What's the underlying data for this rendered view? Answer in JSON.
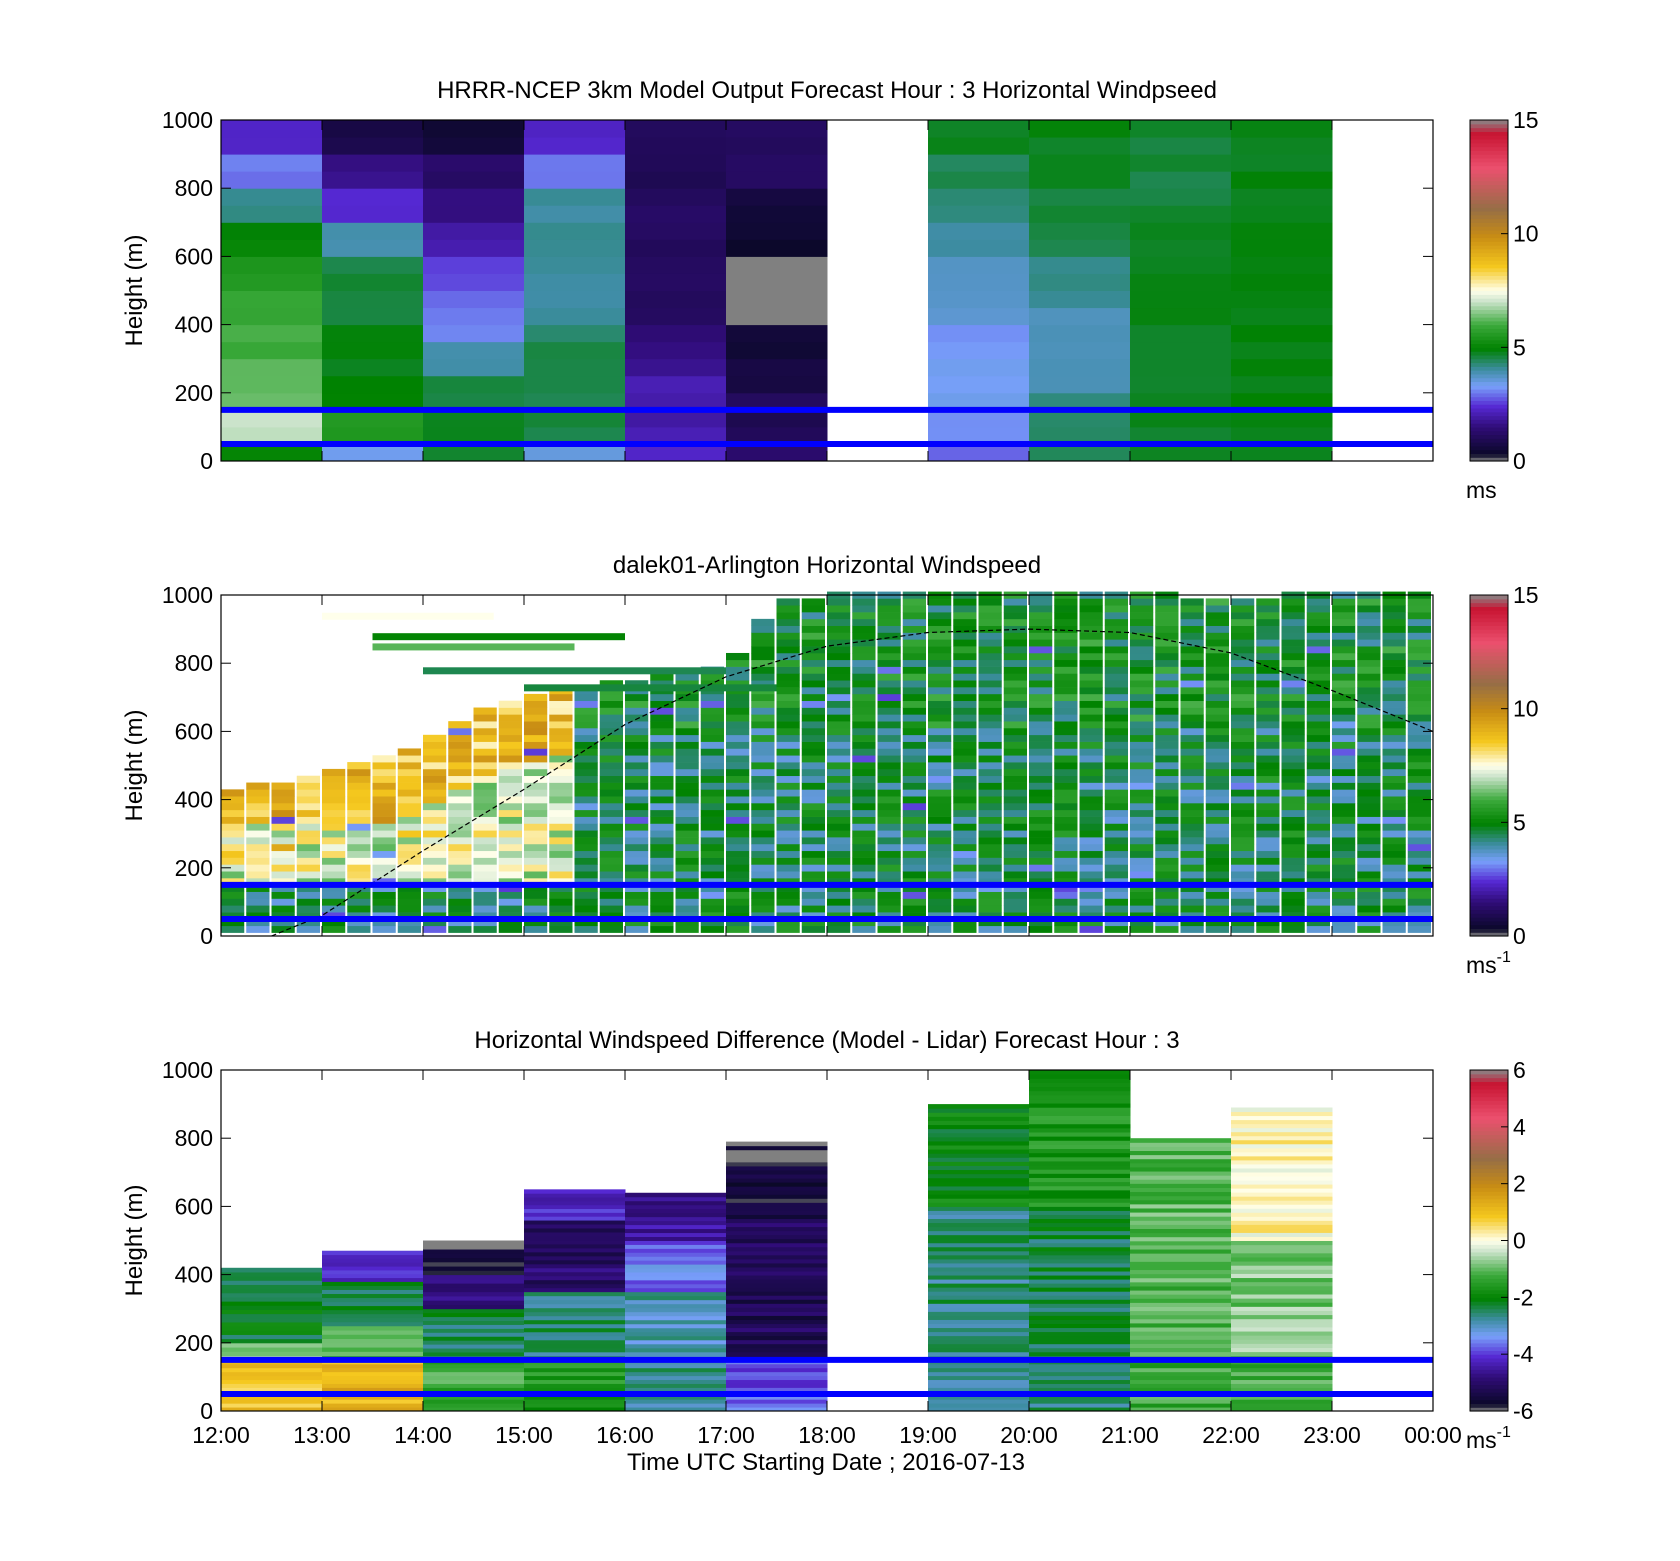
{
  "figure": {
    "xlabel": "Time UTC  Starting Date ; 2016-07-13",
    "xticks": [
      "12:00",
      "13:00",
      "14:00",
      "15:00",
      "16:00",
      "17:00",
      "18:00",
      "19:00",
      "20:00",
      "21:00",
      "22:00",
      "23:00",
      "00:00"
    ],
    "ylabel": "Height (m)",
    "yticks": [
      "0",
      "200",
      "400",
      "600",
      "800",
      "1000"
    ],
    "ref_lines_m": [
      50,
      150
    ],
    "ref_line_color": "#0000ff"
  },
  "chart_data": [
    {
      "type": "heatmap",
      "title": "HRRR-NCEP 3km Model Output   Forecast Hour : 3 Horizontal Windpseed",
      "xlabel": "",
      "ylabel": "Height (m)",
      "xlim": [
        12,
        24
      ],
      "ylim": [
        0,
        1000
      ],
      "colorbar": {
        "ticks": [
          "0",
          "5",
          "10",
          "15"
        ],
        "range": [
          0,
          15
        ],
        "unit": "ms",
        "unit_sup": ""
      },
      "columns": [
        {
          "t0": 12,
          "t1": 13,
          "levels": [
            [
              0,
              50,
              5.0
            ],
            [
              50,
              150,
              7.0
            ],
            [
              150,
              300,
              6.2
            ],
            [
              300,
              400,
              6.0
            ],
            [
              400,
              500,
              5.8
            ],
            [
              500,
              600,
              5.5
            ],
            [
              600,
              700,
              5.0
            ],
            [
              700,
              800,
              4.2
            ],
            [
              800,
              900,
              3.0
            ],
            [
              900,
              1000,
              2.2
            ]
          ]
        },
        {
          "t0": 13,
          "t1": 14,
          "levels": [
            [
              0,
              50,
              3.5
            ],
            [
              50,
              150,
              5.5
            ],
            [
              150,
              250,
              5.0
            ],
            [
              250,
              400,
              4.8
            ],
            [
              400,
              600,
              4.6
            ],
            [
              600,
              700,
              4.0
            ],
            [
              700,
              800,
              2.4
            ],
            [
              800,
              900,
              1.6
            ],
            [
              900,
              1000,
              0.8
            ]
          ]
        },
        {
          "t0": 14,
          "t1": 15,
          "levels": [
            [
              0,
              150,
              4.7
            ],
            [
              150,
              250,
              4.6
            ],
            [
              250,
              350,
              3.9
            ],
            [
              350,
              400,
              3.2
            ],
            [
              400,
              500,
              3.0
            ],
            [
              500,
              600,
              2.6
            ],
            [
              600,
              700,
              2.0
            ],
            [
              700,
              800,
              1.6
            ],
            [
              800,
              900,
              1.2
            ],
            [
              900,
              1000,
              0.6
            ]
          ]
        },
        {
          "t0": 15,
          "t1": 16,
          "levels": [
            [
              0,
              50,
              3.6
            ],
            [
              50,
              350,
              4.6
            ],
            [
              350,
              400,
              4.4
            ],
            [
              400,
              600,
              4.0
            ],
            [
              600,
              800,
              4.1
            ],
            [
              800,
              900,
              3.0
            ],
            [
              900,
              1000,
              2.3
            ]
          ]
        },
        {
          "t0": 16,
          "t1": 17,
          "levels": [
            [
              0,
              50,
              2.3
            ],
            [
              50,
              250,
              2.0
            ],
            [
              250,
              350,
              1.7
            ],
            [
              350,
              400,
              1.4
            ],
            [
              400,
              800,
              1.1
            ],
            [
              800,
              1000,
              1.0
            ]
          ]
        },
        {
          "t0": 17,
          "t1": 18,
          "levels": [
            [
              0,
              50,
              1.3
            ],
            [
              50,
              200,
              1.0
            ],
            [
              200,
              300,
              0.8
            ],
            [
              300,
              400,
              0.5
            ],
            [
              400,
              600,
              -1
            ],
            [
              600,
              700,
              0.4
            ],
            [
              700,
              800,
              0.6
            ],
            [
              800,
              1000,
              1.2
            ]
          ]
        },
        {
          "t0": 19,
          "t1": 20,
          "levels": [
            [
              0,
              50,
              2.8
            ],
            [
              50,
              150,
              3.1
            ],
            [
              150,
              400,
              3.3
            ],
            [
              400,
              600,
              3.7
            ],
            [
              600,
              700,
              4.0
            ],
            [
              700,
              800,
              4.2
            ],
            [
              800,
              900,
              4.5
            ],
            [
              900,
              1000,
              4.8
            ]
          ]
        },
        {
          "t0": 20,
          "t1": 21,
          "levels": [
            [
              0,
              150,
              4.4
            ],
            [
              150,
              200,
              4.2
            ],
            [
              200,
              450,
              3.9
            ],
            [
              450,
              600,
              4.1
            ],
            [
              600,
              700,
              4.5
            ],
            [
              700,
              800,
              4.6
            ],
            [
              800,
              1000,
              4.8
            ]
          ]
        },
        {
          "t0": 21,
          "t1": 22,
          "levels": [
            [
              0,
              700,
              4.8
            ],
            [
              700,
              900,
              4.6
            ],
            [
              900,
              1000,
              4.6
            ]
          ]
        },
        {
          "t0": 22,
          "t1": 23,
          "levels": [
            [
              0,
              1000,
              4.85
            ]
          ]
        }
      ]
    },
    {
      "type": "heatmap",
      "title": "dalek01-Arlington  Horizontal Windspeed",
      "xlabel": "",
      "ylabel": "Height (m)",
      "xlim": [
        12,
        24
      ],
      "ylim": [
        0,
        1000
      ],
      "colorbar": {
        "ticks": [
          "0",
          "5",
          "10",
          "15"
        ],
        "range": [
          0,
          15
        ],
        "unit": "ms",
        "unit_sup": "-1"
      },
      "boundary_layer_curve": [
        [
          12.5,
          0
        ],
        [
          13,
          60
        ],
        [
          14,
          250
        ],
        [
          15,
          430
        ],
        [
          16,
          620
        ],
        [
          17,
          760
        ],
        [
          18,
          850
        ],
        [
          19,
          890
        ],
        [
          20,
          900
        ],
        [
          21,
          890
        ],
        [
          22,
          830
        ],
        [
          23,
          720
        ],
        [
          24,
          600
        ]
      ],
      "profiles_top_m": [
        [
          12,
          420
        ],
        [
          12.5,
          440
        ],
        [
          13,
          480
        ],
        [
          14,
          550
        ],
        [
          14.5,
          640
        ],
        [
          15,
          700
        ],
        [
          15.5,
          720
        ],
        [
          16,
          740
        ],
        [
          17,
          780
        ],
        [
          17.5,
          980
        ],
        [
          18,
          990
        ],
        [
          19,
          1000
        ],
        [
          20,
          1000
        ],
        [
          21,
          1000
        ],
        [
          22,
          980
        ],
        [
          23,
          1000
        ],
        [
          24,
          1000
        ]
      ]
    },
    {
      "type": "heatmap",
      "title": "Horizontal Windspeed Difference (Model - Lidar) Forecast Hour : 3",
      "xlabel": "Time UTC  Starting Date ; 2016-07-13",
      "ylabel": "Height (m)",
      "xlim": [
        12,
        24
      ],
      "ylim": [
        0,
        1000
      ],
      "colorbar": {
        "ticks": [
          "-6",
          "-4",
          "-2",
          "0",
          "2",
          "4",
          "6"
        ],
        "range": [
          -6,
          6
        ],
        "unit": "ms",
        "unit_sup": "-1"
      },
      "columns": [
        {
          "t0": 12,
          "t1": 13,
          "top": 420,
          "levels": [
            [
              0,
              150,
              0.9
            ],
            [
              150,
              200,
              -0.6
            ],
            [
              200,
              420,
              -2.2
            ]
          ]
        },
        {
          "t0": 13,
          "t1": 14,
          "top": 470,
          "levels": [
            [
              0,
              150,
              1.2
            ],
            [
              150,
              250,
              -0.9
            ],
            [
              250,
              380,
              -2.4
            ],
            [
              380,
              470,
              -4.0
            ]
          ]
        },
        {
          "t0": 14,
          "t1": 15,
          "top": 500,
          "levels": [
            [
              0,
              150,
              -1.2
            ],
            [
              150,
              300,
              -2.4
            ],
            [
              300,
              400,
              -4.8
            ],
            [
              400,
              500,
              -5.8
            ]
          ]
        },
        {
          "t0": 15,
          "t1": 16,
          "top": 650,
          "levels": [
            [
              0,
              150,
              -1.6
            ],
            [
              150,
              350,
              -2.5
            ],
            [
              350,
              560,
              -5.0
            ],
            [
              560,
              650,
              -4.2
            ]
          ]
        },
        {
          "t0": 16,
          "t1": 17,
          "top": 640,
          "levels": [
            [
              0,
              150,
              -2.7
            ],
            [
              150,
              350,
              -2.9
            ],
            [
              350,
              500,
              -3.6
            ],
            [
              500,
              640,
              -4.6
            ]
          ]
        },
        {
          "t0": 17,
          "t1": 18,
          "top": 790,
          "levels": [
            [
              0,
              150,
              -3.8
            ],
            [
              150,
              600,
              -5.2
            ],
            [
              600,
              790,
              -5.7
            ]
          ]
        },
        {
          "t0": 19,
          "t1": 20,
          "top": 900,
          "levels": [
            [
              0,
              150,
              -2.8
            ],
            [
              150,
              600,
              -2.6
            ],
            [
              600,
              900,
              -2.0
            ]
          ]
        },
        {
          "t0": 20,
          "t1": 21,
          "top": 1000,
          "levels": [
            [
              0,
              150,
              -2.6
            ],
            [
              150,
              600,
              -2.3
            ],
            [
              600,
              1000,
              -1.6
            ]
          ]
        },
        {
          "t0": 21,
          "t1": 22,
          "top": 800,
          "levels": [
            [
              0,
              150,
              -1.3
            ],
            [
              150,
              800,
              -1.1
            ]
          ]
        },
        {
          "t0": 22,
          "t1": 23,
          "top": 890,
          "levels": [
            [
              0,
              150,
              -1.2
            ],
            [
              150,
              500,
              -0.8
            ],
            [
              500,
              890,
              0.2
            ]
          ]
        }
      ]
    }
  ]
}
